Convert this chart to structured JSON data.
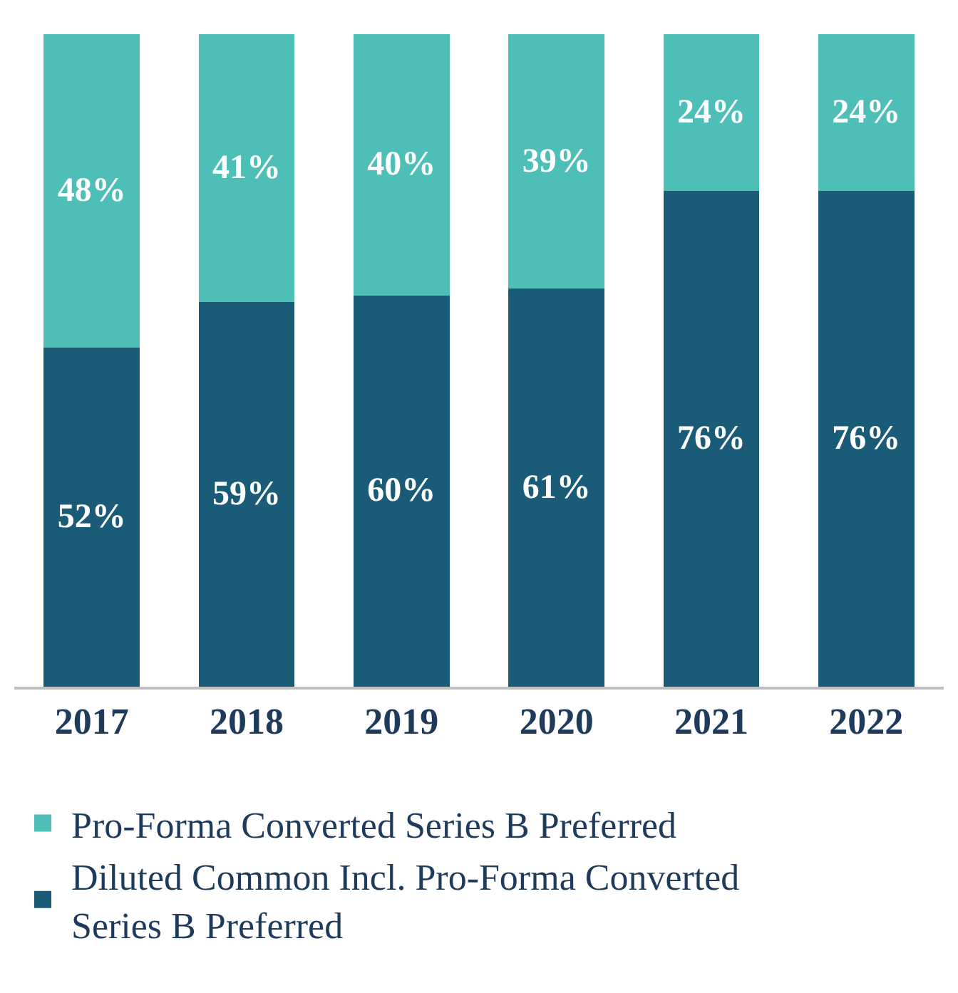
{
  "chart_data": {
    "type": "bar",
    "stacked": true,
    "categories": [
      "2017",
      "2018",
      "2019",
      "2020",
      "2021",
      "2022"
    ],
    "series": [
      {
        "name": "Diluted Common Incl. Pro-Forma Converted Series B Preferred",
        "color": "#1a5b78",
        "values": [
          52,
          59,
          60,
          61,
          76,
          76
        ],
        "value_labels": [
          "52%",
          "59%",
          "60%",
          "61%",
          "76%",
          "76%"
        ]
      },
      {
        "name": "Pro-Forma Converted Series B Preferred",
        "color": "#4dbfb6",
        "values": [
          48,
          41,
          40,
          39,
          24,
          24
        ],
        "value_labels": [
          "48%",
          "41%",
          "40%",
          "39%",
          "24%",
          "24%"
        ]
      }
    ],
    "legend": "bottom"
  }
}
